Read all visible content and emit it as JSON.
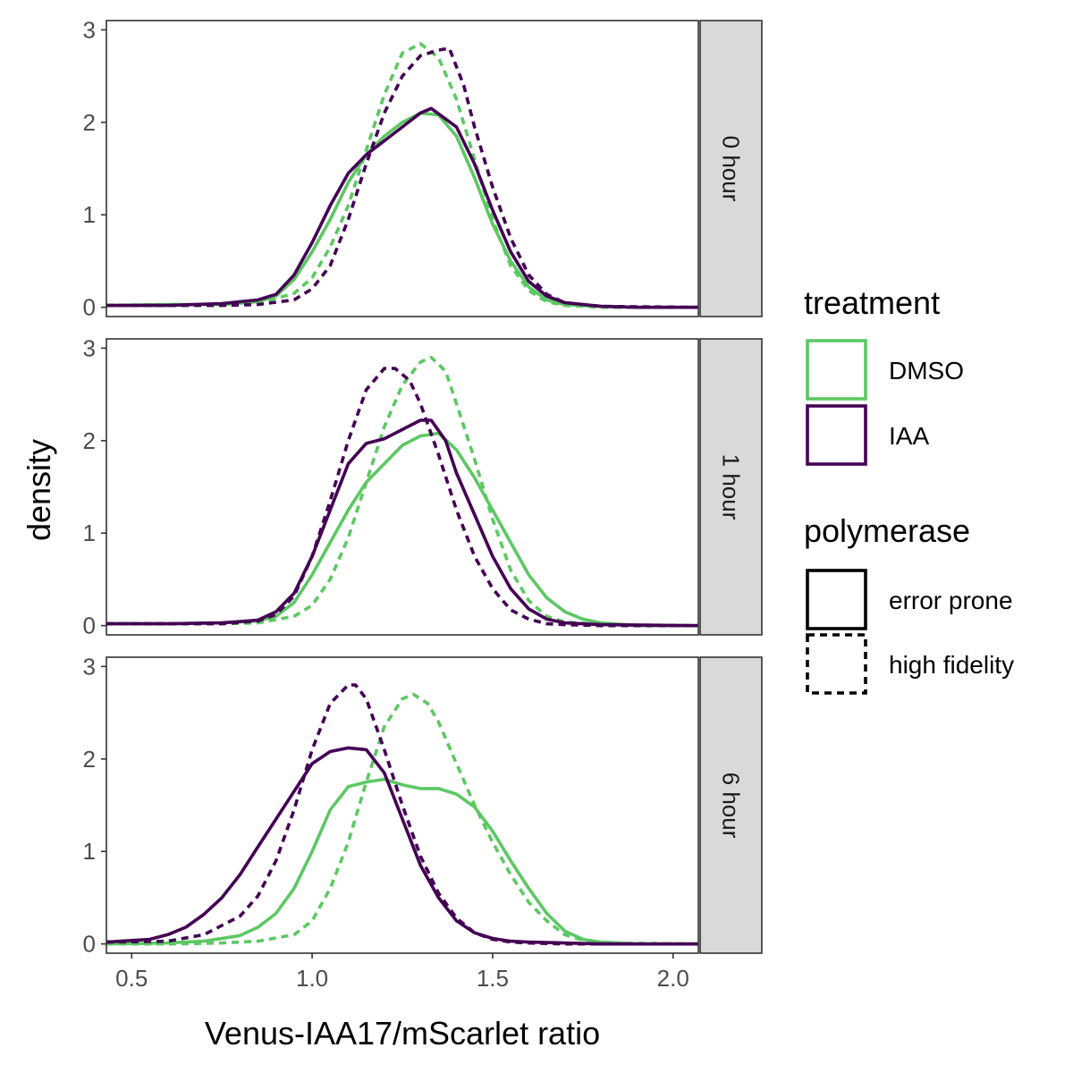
{
  "chart_data": {
    "type": "line",
    "subtype": "density",
    "xlabel": "Venus-IAA17/mScarlet ratio",
    "ylabel": "density",
    "xlim": [
      0.43,
      2.07
    ],
    "ylim": [
      -0.1,
      3.1
    ],
    "x_ticks": [
      "0.5",
      "1.0",
      "1.5",
      "2.0"
    ],
    "x_tick_values": [
      0.5,
      1.0,
      1.5,
      2.0
    ],
    "y_ticks": [
      "0",
      "1",
      "2",
      "3"
    ],
    "y_tick_values": [
      0,
      1,
      2,
      3
    ],
    "grid": false,
    "legend_position": "right",
    "legend": {
      "treatment": {
        "title": "treatment",
        "entries": [
          {
            "label": "DMSO",
            "color": "#5cc863"
          },
          {
            "label": "IAA",
            "color": "#440154"
          }
        ]
      },
      "polymerase": {
        "title": "polymerase",
        "entries": [
          {
            "label": "error prone",
            "dash": "solid"
          },
          {
            "label": "high fidelity",
            "dash": "dashed"
          }
        ]
      }
    },
    "panels": [
      {
        "label": "0 hour",
        "series": [
          {
            "treatment": "DMSO",
            "polymerase": "error prone",
            "x": [
              0.43,
              0.6,
              0.75,
              0.85,
              0.9,
              0.95,
              1.0,
              1.05,
              1.1,
              1.15,
              1.2,
              1.25,
              1.3,
              1.35,
              1.4,
              1.45,
              1.5,
              1.55,
              1.6,
              1.65,
              1.7,
              1.8,
              1.9,
              2.07
            ],
            "y": [
              0.02,
              0.03,
              0.03,
              0.06,
              0.12,
              0.3,
              0.6,
              0.95,
              1.35,
              1.65,
              1.85,
              2.0,
              2.1,
              2.08,
              1.85,
              1.4,
              0.9,
              0.5,
              0.22,
              0.08,
              0.03,
              0.01,
              0.0,
              0.0
            ]
          },
          {
            "treatment": "DMSO",
            "polymerase": "high fidelity",
            "x": [
              0.43,
              0.6,
              0.75,
              0.85,
              0.95,
              1.0,
              1.05,
              1.1,
              1.15,
              1.2,
              1.25,
              1.3,
              1.35,
              1.4,
              1.45,
              1.5,
              1.55,
              1.6,
              1.65,
              1.7,
              1.8,
              2.07
            ],
            "y": [
              0.02,
              0.02,
              0.02,
              0.04,
              0.15,
              0.32,
              0.65,
              1.1,
              1.7,
              2.3,
              2.75,
              2.85,
              2.7,
              2.25,
              1.6,
              0.95,
              0.45,
              0.18,
              0.06,
              0.02,
              0.0,
              0.0
            ]
          },
          {
            "treatment": "IAA",
            "polymerase": "error prone",
            "x": [
              0.43,
              0.6,
              0.75,
              0.8,
              0.85,
              0.9,
              0.95,
              1.0,
              1.05,
              1.1,
              1.15,
              1.2,
              1.25,
              1.3,
              1.33,
              1.4,
              1.45,
              1.5,
              1.55,
              1.6,
              1.65,
              1.7,
              1.8,
              1.9,
              2.07
            ],
            "y": [
              0.02,
              0.02,
              0.04,
              0.06,
              0.08,
              0.14,
              0.35,
              0.7,
              1.1,
              1.45,
              1.65,
              1.8,
              1.95,
              2.1,
              2.15,
              1.95,
              1.55,
              1.05,
              0.6,
              0.28,
              0.12,
              0.05,
              0.01,
              0.0,
              0.0
            ]
          },
          {
            "treatment": "IAA",
            "polymerase": "high fidelity",
            "x": [
              0.43,
              0.6,
              0.75,
              0.85,
              0.95,
              1.0,
              1.05,
              1.1,
              1.15,
              1.2,
              1.25,
              1.3,
              1.35,
              1.38,
              1.42,
              1.45,
              1.5,
              1.55,
              1.6,
              1.65,
              1.7,
              1.8,
              2.07
            ],
            "y": [
              0.02,
              0.02,
              0.02,
              0.03,
              0.08,
              0.2,
              0.45,
              0.95,
              1.55,
              2.1,
              2.5,
              2.72,
              2.78,
              2.8,
              2.4,
              1.95,
              1.3,
              0.75,
              0.35,
              0.14,
              0.05,
              0.01,
              0.0
            ]
          }
        ]
      },
      {
        "label": "1 hour",
        "series": [
          {
            "treatment": "DMSO",
            "polymerase": "error prone",
            "x": [
              0.43,
              0.6,
              0.75,
              0.85,
              0.9,
              0.95,
              1.0,
              1.05,
              1.1,
              1.15,
              1.2,
              1.25,
              1.3,
              1.35,
              1.4,
              1.45,
              1.5,
              1.55,
              1.6,
              1.65,
              1.7,
              1.75,
              1.8,
              1.9,
              2.07
            ],
            "y": [
              0.02,
              0.02,
              0.03,
              0.05,
              0.1,
              0.25,
              0.55,
              0.9,
              1.25,
              1.55,
              1.75,
              1.95,
              2.05,
              2.08,
              1.9,
              1.6,
              1.25,
              0.9,
              0.55,
              0.3,
              0.15,
              0.07,
              0.03,
              0.0,
              0.0
            ]
          },
          {
            "treatment": "DMSO",
            "polymerase": "high fidelity",
            "x": [
              0.43,
              0.6,
              0.75,
              0.85,
              0.95,
              1.0,
              1.05,
              1.1,
              1.15,
              1.2,
              1.25,
              1.3,
              1.33,
              1.37,
              1.4,
              1.45,
              1.5,
              1.55,
              1.6,
              1.65,
              1.7,
              1.8,
              2.07
            ],
            "y": [
              0.02,
              0.02,
              0.02,
              0.03,
              0.1,
              0.22,
              0.5,
              0.95,
              1.55,
              2.15,
              2.6,
              2.85,
              2.9,
              2.75,
              2.4,
              1.8,
              1.15,
              0.6,
              0.27,
              0.1,
              0.04,
              0.01,
              0.0
            ]
          },
          {
            "treatment": "IAA",
            "polymerase": "error prone",
            "x": [
              0.43,
              0.6,
              0.75,
              0.85,
              0.9,
              0.95,
              1.0,
              1.05,
              1.1,
              1.15,
              1.2,
              1.25,
              1.3,
              1.33,
              1.37,
              1.4,
              1.45,
              1.5,
              1.55,
              1.6,
              1.65,
              1.7,
              1.8,
              2.07
            ],
            "y": [
              0.02,
              0.02,
              0.03,
              0.06,
              0.15,
              0.35,
              0.75,
              1.25,
              1.75,
              1.97,
              2.02,
              2.12,
              2.22,
              2.22,
              2.0,
              1.65,
              1.2,
              0.75,
              0.4,
              0.18,
              0.07,
              0.03,
              0.01,
              0.0
            ]
          },
          {
            "treatment": "IAA",
            "polymerase": "high fidelity",
            "x": [
              0.43,
              0.6,
              0.75,
              0.85,
              0.9,
              0.95,
              1.0,
              1.05,
              1.1,
              1.15,
              1.2,
              1.23,
              1.27,
              1.3,
              1.35,
              1.4,
              1.45,
              1.5,
              1.55,
              1.6,
              1.65,
              1.7,
              1.8,
              2.07
            ],
            "y": [
              0.02,
              0.02,
              0.02,
              0.05,
              0.12,
              0.32,
              0.75,
              1.35,
              2.0,
              2.55,
              2.78,
              2.78,
              2.65,
              2.4,
              1.85,
              1.25,
              0.75,
              0.4,
              0.17,
              0.07,
              0.02,
              0.01,
              0.0,
              0.0
            ]
          }
        ]
      },
      {
        "label": "6 hour",
        "series": [
          {
            "treatment": "DMSO",
            "polymerase": "error prone",
            "x": [
              0.43,
              0.6,
              0.7,
              0.8,
              0.85,
              0.9,
              0.95,
              1.0,
              1.05,
              1.1,
              1.15,
              1.2,
              1.25,
              1.3,
              1.35,
              1.4,
              1.45,
              1.5,
              1.55,
              1.6,
              1.65,
              1.7,
              1.75,
              1.8,
              1.9,
              2.07
            ],
            "y": [
              0.0,
              0.01,
              0.03,
              0.09,
              0.18,
              0.33,
              0.6,
              1.0,
              1.45,
              1.7,
              1.75,
              1.78,
              1.72,
              1.68,
              1.68,
              1.62,
              1.48,
              1.22,
              0.9,
              0.6,
              0.33,
              0.14,
              0.05,
              0.02,
              0.0,
              0.0
            ]
          },
          {
            "treatment": "DMSO",
            "polymerase": "high fidelity",
            "x": [
              0.43,
              0.6,
              0.75,
              0.85,
              0.95,
              1.0,
              1.05,
              1.1,
              1.15,
              1.2,
              1.25,
              1.28,
              1.32,
              1.35,
              1.4,
              1.45,
              1.5,
              1.55,
              1.6,
              1.65,
              1.7,
              1.75,
              1.8,
              2.07
            ],
            "y": [
              0.0,
              0.0,
              0.01,
              0.03,
              0.1,
              0.25,
              0.6,
              1.1,
              1.75,
              2.35,
              2.65,
              2.7,
              2.6,
              2.4,
              1.95,
              1.5,
              1.1,
              0.75,
              0.45,
              0.25,
              0.1,
              0.04,
              0.01,
              0.0
            ]
          },
          {
            "treatment": "IAA",
            "polymerase": "error prone",
            "x": [
              0.43,
              0.55,
              0.6,
              0.65,
              0.7,
              0.75,
              0.8,
              0.85,
              0.9,
              0.95,
              1.0,
              1.05,
              1.1,
              1.15,
              1.2,
              1.25,
              1.3,
              1.35,
              1.4,
              1.45,
              1.5,
              1.55,
              1.6,
              1.7,
              1.8,
              2.07
            ],
            "y": [
              0.02,
              0.05,
              0.1,
              0.18,
              0.32,
              0.5,
              0.75,
              1.05,
              1.35,
              1.65,
              1.95,
              2.08,
              2.12,
              2.1,
              1.85,
              1.35,
              0.85,
              0.5,
              0.25,
              0.12,
              0.06,
              0.03,
              0.02,
              0.01,
              0.0,
              0.0
            ]
          },
          {
            "treatment": "IAA",
            "polymerase": "high fidelity",
            "x": [
              0.43,
              0.6,
              0.7,
              0.8,
              0.85,
              0.9,
              0.95,
              1.0,
              1.05,
              1.1,
              1.12,
              1.15,
              1.2,
              1.25,
              1.3,
              1.35,
              1.4,
              1.45,
              1.5,
              1.55,
              1.6,
              1.7,
              2.07
            ],
            "y": [
              0.02,
              0.03,
              0.1,
              0.3,
              0.52,
              0.9,
              1.45,
              2.1,
              2.6,
              2.8,
              2.8,
              2.65,
              2.1,
              1.5,
              0.95,
              0.55,
              0.28,
              0.12,
              0.05,
              0.02,
              0.01,
              0.0,
              0.0
            ]
          }
        ]
      }
    ]
  }
}
